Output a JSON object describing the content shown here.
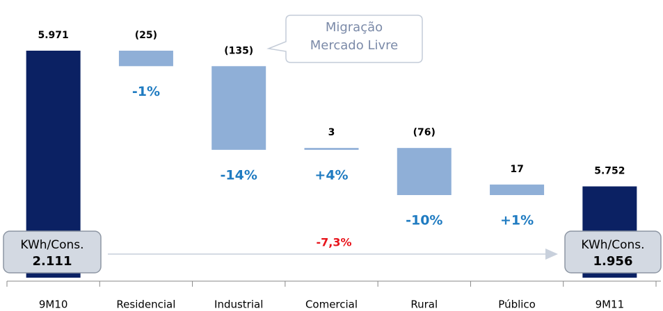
{
  "chart_data": {
    "type": "waterfall",
    "categories": [
      "9M10",
      "Residencial",
      "Industrial",
      "Comercial",
      "Rural",
      "Público",
      "9M11"
    ],
    "values": [
      5971,
      -25,
      -135,
      3,
      -76,
      17,
      5752
    ],
    "value_labels": [
      "5.971",
      "(25)",
      "(135)",
      "3",
      "(76)",
      "17",
      "5.752"
    ],
    "totals": [
      true,
      false,
      false,
      false,
      false,
      false,
      true
    ],
    "changes": [
      null,
      "-1%",
      "-14%",
      "+4%",
      "-10%",
      "+1%",
      null
    ],
    "total_color": "#0b2163",
    "delta_color": "#8fafd7",
    "change_color": "#1f7bc1",
    "total_change": "-7,3%",
    "total_change_color": "#e8141b",
    "callout": [
      "Migração",
      "Mercado Livre"
    ],
    "start_box": {
      "label": "KWh/Cons.",
      "value": "2.111"
    },
    "end_box": {
      "label": "KWh/Cons.",
      "value": "1.956"
    }
  }
}
